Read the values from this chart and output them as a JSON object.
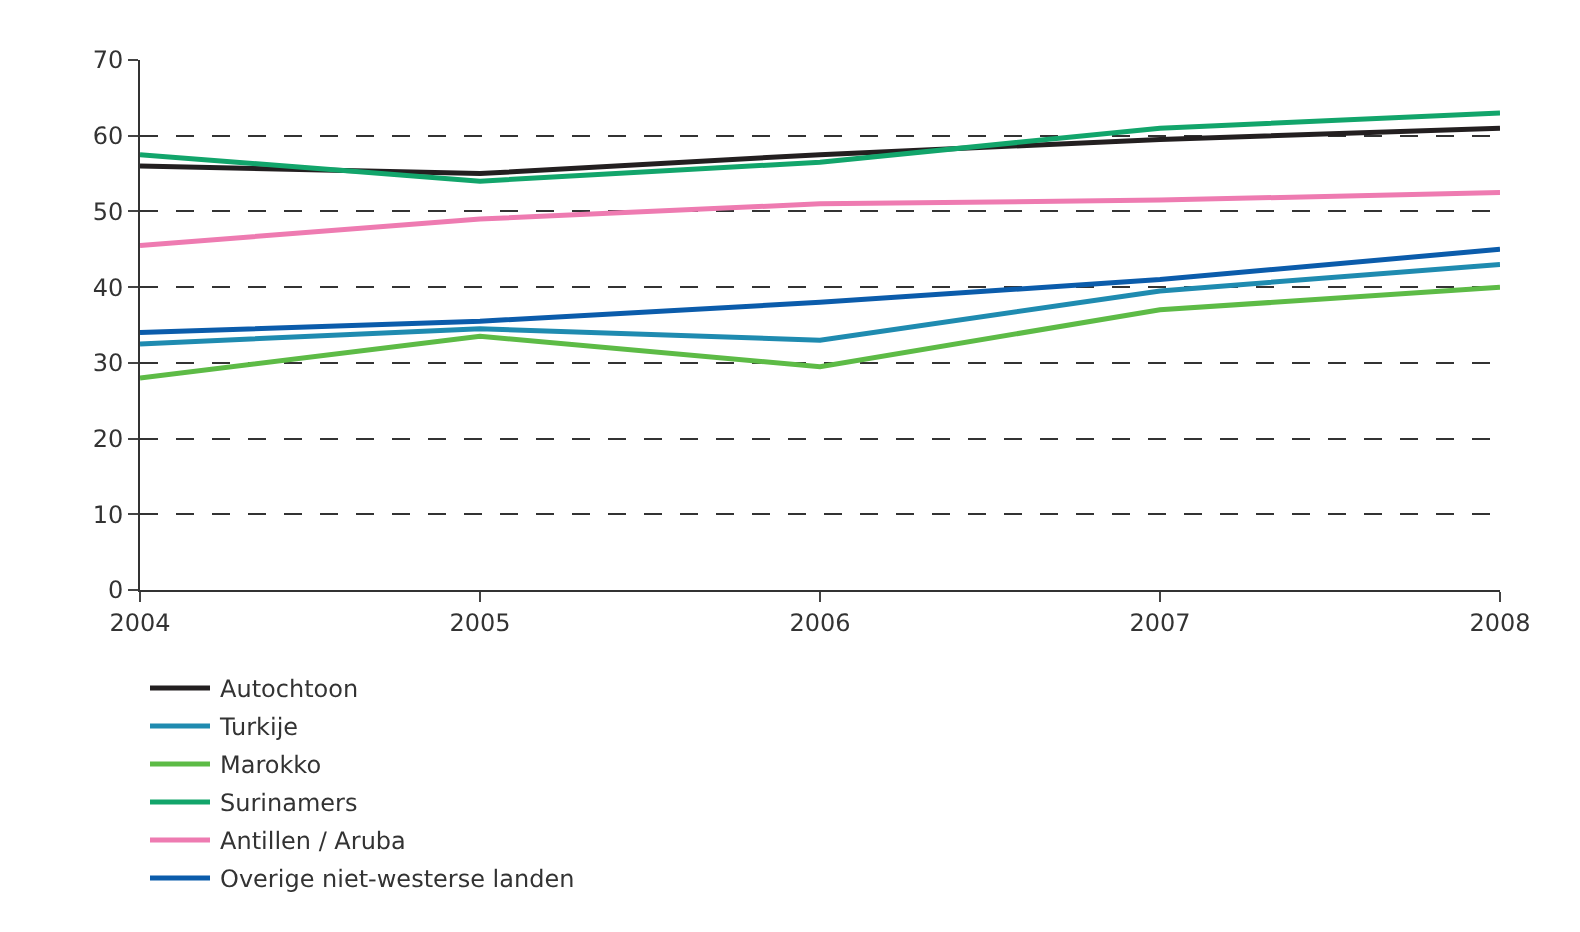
{
  "chart_data": {
    "type": "line",
    "x": [
      2004,
      2005,
      2006,
      2007,
      2008
    ],
    "xlim": [
      2004,
      2008
    ],
    "xticks": [
      2004,
      2005,
      2006,
      2007,
      2008
    ],
    "ylim": [
      0,
      70
    ],
    "yticks": [
      0,
      10,
      20,
      30,
      40,
      50,
      60,
      70
    ],
    "grid": "y",
    "legend": "bottom",
    "line_style": "solid",
    "series": [
      {
        "name": "Autochtoon",
        "color": "#231f20",
        "values": [
          56,
          55,
          57.5,
          59.5,
          61
        ]
      },
      {
        "name": "Turkije",
        "color": "#1f8bb0",
        "values": [
          32.5,
          34.5,
          33,
          39.5,
          43
        ]
      },
      {
        "name": "Marokko",
        "color": "#5dbb46",
        "values": [
          28,
          33.5,
          29.5,
          37,
          40
        ]
      },
      {
        "name": "Surinamers",
        "color": "#12a56b",
        "values": [
          57.5,
          54,
          56.5,
          61,
          63
        ]
      },
      {
        "name": "Antillen / Aruba",
        "color": "#ee7bb1",
        "values": [
          45.5,
          49,
          51,
          51.5,
          52.5
        ]
      },
      {
        "name": "Overige niet-westerse landen",
        "color": "#0b5cab",
        "values": [
          34,
          35.5,
          38,
          41,
          45
        ]
      }
    ]
  }
}
